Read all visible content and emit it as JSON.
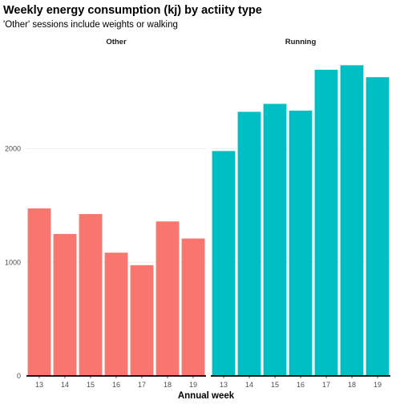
{
  "chart_data": {
    "type": "bar",
    "title": "Weekly energy consumption (kj) by actiity type",
    "subtitle": "'Other' sessions include weights or walking",
    "xlabel": "Annual week",
    "ylabel": "",
    "ylim": [
      0,
      2900
    ],
    "yticks": [
      0,
      1000,
      2000
    ],
    "grid": true,
    "legend": "none",
    "categories": [
      "13",
      "14",
      "15",
      "16",
      "17",
      "18",
      "19"
    ],
    "panels": [
      {
        "name": "Other",
        "color": "#F8766D",
        "values": [
          1475,
          1250,
          1425,
          1085,
          975,
          1360,
          1210
        ]
      },
      {
        "name": "Running",
        "color": "#00BFC4",
        "values": [
          1980,
          2325,
          2395,
          2335,
          2695,
          2735,
          2630
        ]
      }
    ]
  }
}
